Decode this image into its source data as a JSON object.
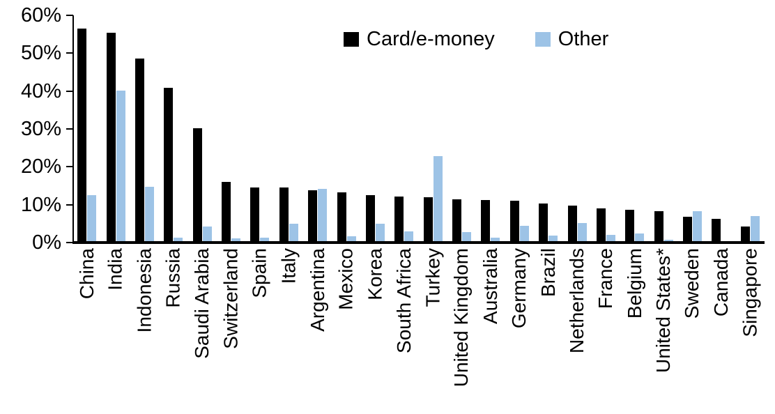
{
  "chart_data": {
    "type": "bar",
    "title": "",
    "xlabel": "",
    "ylabel": "",
    "ylim": [
      0,
      60
    ],
    "ytick_step": 10,
    "ytick_labels": [
      "0%",
      "10%",
      "20%",
      "30%",
      "40%",
      "50%",
      "60%"
    ],
    "grid": false,
    "legend_position": "top-center",
    "categories": [
      "China",
      "India",
      "Indonesia",
      "Russia",
      "Saudi Arabia",
      "Switzerland",
      "Spain",
      "Italy",
      "Argentina",
      "Mexico",
      "Korea",
      "South Africa",
      "Turkey",
      "United Kingdom",
      "Australia",
      "Germany",
      "Brazil",
      "Netherlands",
      "France",
      "Belgium",
      "United States*",
      "Sweden",
      "Canada",
      "Singapore"
    ],
    "series": [
      {
        "name": "Card/e-money",
        "color": "#000000",
        "values": [
          56.2,
          55.0,
          48.3,
          40.5,
          29.8,
          15.6,
          14.2,
          14.1,
          13.4,
          12.9,
          12.2,
          11.7,
          11.6,
          11.1,
          10.8,
          10.6,
          10.0,
          9.3,
          8.7,
          8.2,
          7.9,
          6.5,
          5.9,
          3.9
        ]
      },
      {
        "name": "Other",
        "color": "#9DC3E6",
        "values": [
          12.2,
          39.7,
          14.3,
          0.9,
          3.8,
          0.7,
          0.9,
          4.6,
          13.8,
          1.3,
          4.6,
          2.5,
          22.5,
          2.4,
          1.0,
          4.0,
          1.4,
          4.8,
          1.6,
          2.1,
          0.3,
          8.0,
          0,
          6.6
        ]
      }
    ]
  },
  "colors": {
    "card": "#000000",
    "other": "#9DC3E6",
    "axis": "#000000",
    "background": "#FFFFFF"
  }
}
